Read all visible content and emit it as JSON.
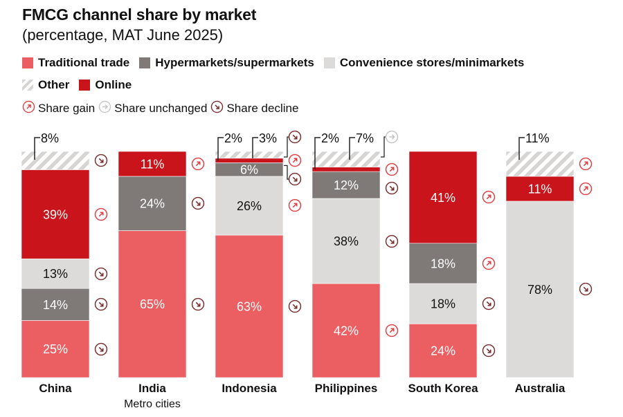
{
  "title": "FMCG channel share by market",
  "subtitle": "(percentage, MAT June 2025)",
  "colors": {
    "traditional": "#eb5f63",
    "hyper": "#7f7a77",
    "convenience": "#dcdbd9",
    "online": "#c8141a",
    "other": "#d6d5d3",
    "gain": "#e23c40",
    "unchanged": "#c4c4c4",
    "decline": "#7a2a2a"
  },
  "legend": {
    "channels": [
      {
        "key": "traditional",
        "label": "Traditional trade"
      },
      {
        "key": "hyper",
        "label": "Hypermarkets/supermarkets"
      },
      {
        "key": "convenience",
        "label": "Convenience stores/minimarkets"
      },
      {
        "key": "other",
        "label": "Other"
      },
      {
        "key": "online",
        "label": "Online"
      }
    ],
    "trends": [
      {
        "key": "gain",
        "icon": "arrow-up-right-circle-icon",
        "label": "Share gain"
      },
      {
        "key": "unchanged",
        "icon": "arrow-right-circle-icon",
        "label": "Share unchanged"
      },
      {
        "key": "decline",
        "icon": "arrow-down-right-circle-icon",
        "label": "Share decline"
      }
    ]
  },
  "chart_data": {
    "type": "bar",
    "stacked": true,
    "title": "FMCG channel share by market",
    "subtitle": "(percentage, MAT June 2025)",
    "unit": "%",
    "categories": [
      "China",
      "India",
      "Indonesia",
      "Philippines",
      "South Korea",
      "Australia"
    ],
    "category_sublabels": [
      "",
      "Metro cities",
      "",
      "",
      "",
      ""
    ],
    "series_order_bottom_up": [
      "traditional",
      "hyper",
      "convenience",
      "online",
      "other"
    ],
    "markets": [
      {
        "name": "China",
        "sublabel": "",
        "segments": [
          {
            "channel": "traditional",
            "value": 25,
            "trend": "decline"
          },
          {
            "channel": "hyper",
            "value": 14,
            "trend": "decline"
          },
          {
            "channel": "convenience",
            "value": 13,
            "trend": "decline"
          },
          {
            "channel": "online",
            "value": 39,
            "trend": "gain"
          },
          {
            "channel": "other",
            "value": 8,
            "trend": "decline"
          }
        ]
      },
      {
        "name": "India",
        "sublabel": "Metro cities",
        "segments": [
          {
            "channel": "traditional",
            "value": 65,
            "trend": "decline"
          },
          {
            "channel": "hyper",
            "value": 24,
            "trend": "decline"
          },
          {
            "channel": "online",
            "value": 11,
            "trend": "gain"
          }
        ]
      },
      {
        "name": "Indonesia",
        "sublabel": "",
        "segments": [
          {
            "channel": "traditional",
            "value": 63,
            "trend": "decline"
          },
          {
            "channel": "convenience",
            "value": 26,
            "trend": "gain"
          },
          {
            "channel": "hyper",
            "value": 6,
            "trend": "decline"
          },
          {
            "channel": "online",
            "value": 2,
            "trend": "gain"
          },
          {
            "channel": "other",
            "value": 3,
            "trend": "decline"
          }
        ]
      },
      {
        "name": "Philippines",
        "sublabel": "",
        "segments": [
          {
            "channel": "traditional",
            "value": 42,
            "trend": "gain"
          },
          {
            "channel": "convenience",
            "value": 38,
            "trend": "decline"
          },
          {
            "channel": "hyper",
            "value": 12,
            "trend": "decline"
          },
          {
            "channel": "online",
            "value": 2,
            "trend": "gain"
          },
          {
            "channel": "other",
            "value": 7,
            "trend": "unchanged"
          }
        ]
      },
      {
        "name": "South Korea",
        "sublabel": "",
        "segments": [
          {
            "channel": "traditional",
            "value": 24,
            "trend": "decline"
          },
          {
            "channel": "convenience",
            "value": 18,
            "trend": "decline"
          },
          {
            "channel": "hyper",
            "value": 18,
            "trend": "gain"
          },
          {
            "channel": "online",
            "value": 41,
            "trend": "gain"
          }
        ]
      },
      {
        "name": "Australia",
        "sublabel": "",
        "segments": [
          {
            "channel": "convenience",
            "value": 78,
            "trend": "decline"
          },
          {
            "channel": "online",
            "value": 11,
            "trend": "gain"
          },
          {
            "channel": "other",
            "value": 11,
            "trend": "gain"
          }
        ]
      }
    ],
    "legend_placement": "top-left",
    "grid": false
  }
}
